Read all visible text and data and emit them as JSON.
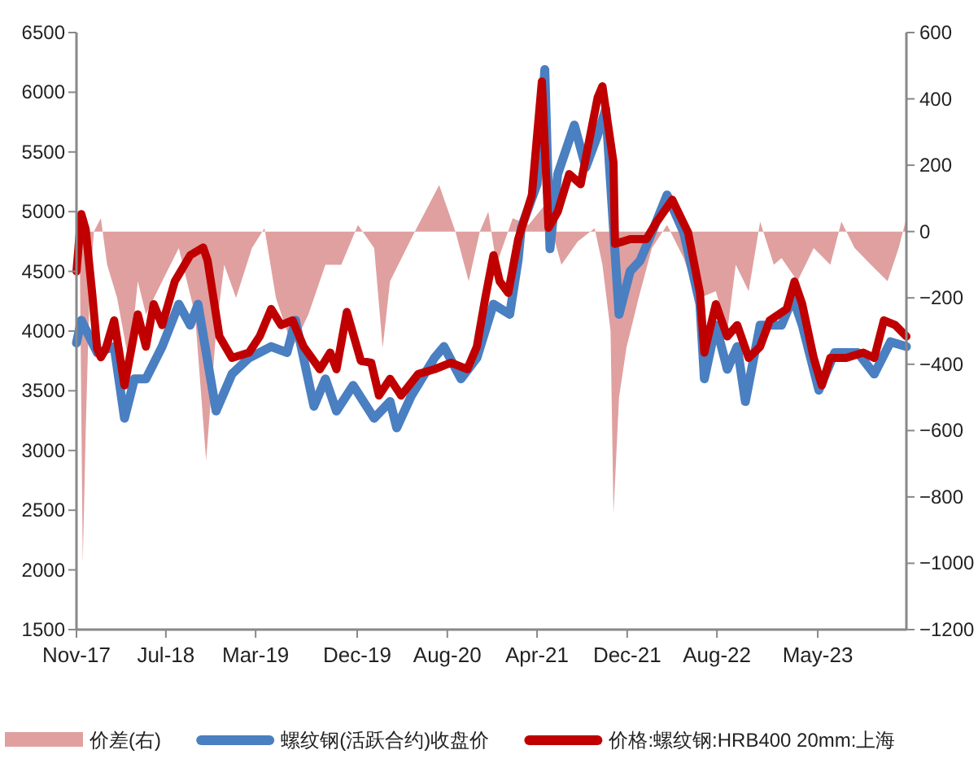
{
  "chart_data": {
    "type": "line",
    "legend": "bottom",
    "grid": false,
    "xlim": [
      "2017-11-01",
      "2023-12-27"
    ],
    "xticks": [
      {
        "value": "2017-11-01",
        "label": "Nov-17"
      },
      {
        "value": "2018-07-01",
        "label": "Jul-18"
      },
      {
        "value": "2019-03-01",
        "label": "Mar-19"
      },
      {
        "value": "2019-12-01",
        "label": "Dec-19"
      },
      {
        "value": "2020-08-01",
        "label": "Aug-20"
      },
      {
        "value": "2021-04-01",
        "label": "Apr-21"
      },
      {
        "value": "2021-12-01",
        "label": "Dec-21"
      },
      {
        "value": "2022-08-01",
        "label": "Aug-22"
      },
      {
        "value": "2023-05-01",
        "label": "May-23"
      }
    ],
    "ylim": [
      1500,
      6500
    ],
    "yticks": [
      1500,
      2000,
      2500,
      3000,
      3500,
      4000,
      4500,
      5000,
      5500,
      6000,
      6500
    ],
    "y2lim": [
      -1200,
      600
    ],
    "y2ticks": [
      -1200,
      -1000,
      -800,
      -600,
      -400,
      -200,
      0,
      200,
      400,
      600
    ],
    "series": [
      {
        "name": "价差(右)",
        "type": "area",
        "axis": "y2",
        "color": "#e0a0a0",
        "x": [
          "2017-11-01",
          "2017-11-09",
          "2017-11-18",
          "2017-11-26",
          "2017-12-06",
          "2017-12-18",
          "2018-01-06",
          "2018-01-23",
          "2018-02-19",
          "2018-03-24",
          "2018-04-16",
          "2018-05-08",
          "2018-06-21",
          "2018-08-05",
          "2018-09-18",
          "2018-10-18",
          "2018-11-14",
          "2018-12-06",
          "2019-01-07",
          "2019-02-19",
          "2019-03-25",
          "2019-04-25",
          "2019-06-09",
          "2019-07-22",
          "2019-09-06",
          "2019-10-19",
          "2019-12-03",
          "2020-01-16",
          "2020-02-08",
          "2020-02-28",
          "2020-05-05",
          "2020-07-10",
          "2020-08-23",
          "2020-09-28",
          "2020-10-28",
          "2020-11-20",
          "2020-12-12",
          "2021-01-25",
          "2021-03-09",
          "2021-04-22",
          "2021-06-06",
          "2021-07-20",
          "2021-09-04",
          "2021-09-25",
          "2021-10-17",
          "2021-10-25",
          "2021-11-09",
          "2021-11-29",
          "2022-01-01",
          "2022-02-06",
          "2022-03-19",
          "2022-05-03",
          "2022-05-24",
          "2022-06-16",
          "2022-07-29",
          "2022-08-29",
          "2022-09-21",
          "2022-10-26",
          "2022-11-26",
          "2023-01-02",
          "2023-01-23",
          "2023-03-07",
          "2023-04-20",
          "2023-06-04",
          "2023-07-04",
          "2023-08-09",
          "2023-09-22",
          "2023-11-06",
          "2023-12-06",
          "2023-12-27"
        ],
        "values": [
          0,
          50,
          -1000,
          -600,
          -200,
          0,
          40,
          -100,
          -200,
          -400,
          -150,
          -250,
          -150,
          -50,
          -250,
          -690,
          -300,
          -100,
          -200,
          -50,
          10,
          -200,
          -350,
          -250,
          -100,
          -100,
          20,
          -50,
          -350,
          -150,
          0,
          140,
          0,
          -150,
          0,
          60,
          -100,
          40,
          20,
          80,
          -100,
          -30,
          10,
          -100,
          -300,
          -850,
          -500,
          -350,
          -200,
          -50,
          20,
          -80,
          -150,
          -200,
          -180,
          -300,
          -100,
          -180,
          30,
          -100,
          -80,
          -150,
          -50,
          -100,
          30,
          -50,
          -100,
          -150,
          -50,
          40
        ]
      },
      {
        "name": "螺纹钢(活跃合约)收盘价",
        "color": "#4a7fc1",
        "x": [
          "2017-11-01",
          "2017-11-14",
          "2017-12-27",
          "2018-02-11",
          "2018-03-11",
          "2018-04-07",
          "2018-05-08",
          "2018-06-21",
          "2018-08-05",
          "2018-09-05",
          "2018-09-26",
          "2018-11-14",
          "2018-12-27",
          "2019-02-11",
          "2019-04-12",
          "2019-05-25",
          "2019-06-17",
          "2019-08-06",
          "2019-09-06",
          "2019-10-06",
          "2019-11-20",
          "2020-01-16",
          "2020-02-28",
          "2020-03-17",
          "2020-04-26",
          "2020-06-27",
          "2020-07-23",
          "2020-09-07",
          "2020-10-20",
          "2020-12-04",
          "2021-01-17",
          "2021-02-09",
          "2021-02-17",
          "2021-04-01",
          "2021-04-22",
          "2021-05-06",
          "2021-05-27",
          "2021-07-11",
          "2021-08-11",
          "2021-09-12",
          "2021-10-04",
          "2021-11-09",
          "2021-12-09",
          "2022-01-05",
          "2022-02-06",
          "2022-03-19",
          "2022-05-03",
          "2022-06-16",
          "2022-06-28",
          "2022-07-29",
          "2022-08-29",
          "2022-09-25",
          "2022-10-17",
          "2022-11-26",
          "2023-01-23",
          "2023-02-23",
          "2023-03-20",
          "2023-05-04",
          "2023-06-16",
          "2023-08-17",
          "2023-10-01",
          "2023-11-14",
          "2023-12-27"
        ],
        "values": [
          3900,
          4090,
          3820,
          3870,
          3270,
          3600,
          3600,
          3870,
          4225,
          4050,
          4225,
          3330,
          3640,
          3775,
          3870,
          3820,
          4090,
          3370,
          3600,
          3330,
          3545,
          3270,
          3410,
          3190,
          3460,
          3775,
          3870,
          3600,
          3775,
          4225,
          4140,
          4600,
          4865,
          5230,
          6190,
          4690,
          5315,
          5725,
          5370,
          5640,
          5860,
          4140,
          4500,
          4590,
          4825,
          5140,
          4825,
          4225,
          3600,
          4050,
          3680,
          3870,
          3410,
          4050,
          4050,
          4280,
          4050,
          3505,
          3820,
          3820,
          3640,
          3910,
          3870
        ]
      },
      {
        "name": "价格:螺纹钢:HRB400 20mm:上海",
        "color": "#c00000",
        "x": [
          "2017-11-01",
          "2017-11-14",
          "2017-11-26",
          "2017-12-14",
          "2017-12-27",
          "2018-01-06",
          "2018-01-19",
          "2018-02-11",
          "2018-03-03",
          "2018-03-11",
          "2018-04-16",
          "2018-05-08",
          "2018-05-29",
          "2018-06-21",
          "2018-07-25",
          "2018-09-05",
          "2018-10-10",
          "2018-10-22",
          "2018-11-23",
          "2018-12-27",
          "2019-02-11",
          "2019-03-12",
          "2019-04-12",
          "2019-05-09",
          "2019-06-09",
          "2019-07-09",
          "2019-08-22",
          "2019-09-19",
          "2019-10-06",
          "2019-11-03",
          "2019-12-11",
          "2020-01-08",
          "2020-01-29",
          "2020-02-28",
          "2020-03-29",
          "2020-05-14",
          "2020-06-27",
          "2020-08-11",
          "2020-09-24",
          "2020-10-20",
          "2020-11-12",
          "2020-12-04",
          "2020-12-21",
          "2021-01-13",
          "2021-02-09",
          "2021-03-18",
          "2021-04-14",
          "2021-05-02",
          "2021-05-27",
          "2021-06-27",
          "2021-07-28",
          "2021-09-12",
          "2021-09-25",
          "2021-10-25",
          "2021-10-29",
          "2021-12-09",
          "2022-01-22",
          "2022-02-18",
          "2022-04-02",
          "2022-05-15",
          "2022-06-16",
          "2022-06-28",
          "2022-07-29",
          "2022-08-29",
          "2022-09-25",
          "2022-10-26",
          "2022-11-26",
          "2022-12-22",
          "2023-02-06",
          "2023-02-27",
          "2023-03-20",
          "2023-04-20",
          "2023-05-12",
          "2023-06-04",
          "2023-07-17",
          "2023-09-01",
          "2023-10-01",
          "2023-10-27",
          "2023-11-27",
          "2023-12-27"
        ],
        "values": [
          4500,
          4980,
          4850,
          4300,
          3850,
          3780,
          3850,
          4090,
          3700,
          3545,
          4140,
          3870,
          4225,
          4050,
          4415,
          4635,
          4700,
          4590,
          3955,
          3775,
          3820,
          3955,
          4185,
          4050,
          4090,
          3870,
          3680,
          3820,
          3680,
          4160,
          3750,
          3735,
          3460,
          3600,
          3460,
          3640,
          3680,
          3735,
          3680,
          3870,
          4280,
          4635,
          4415,
          4320,
          4770,
          5140,
          6090,
          4865,
          5000,
          5315,
          5230,
          5955,
          6050,
          5410,
          4730,
          4770,
          4770,
          4910,
          5100,
          4825,
          4320,
          3820,
          4225,
          3955,
          4050,
          3775,
          3870,
          4090,
          4185,
          4415,
          4225,
          3775,
          3545,
          3775,
          3775,
          3820,
          3775,
          4090,
          4050,
          3955
        ]
      }
    ]
  }
}
